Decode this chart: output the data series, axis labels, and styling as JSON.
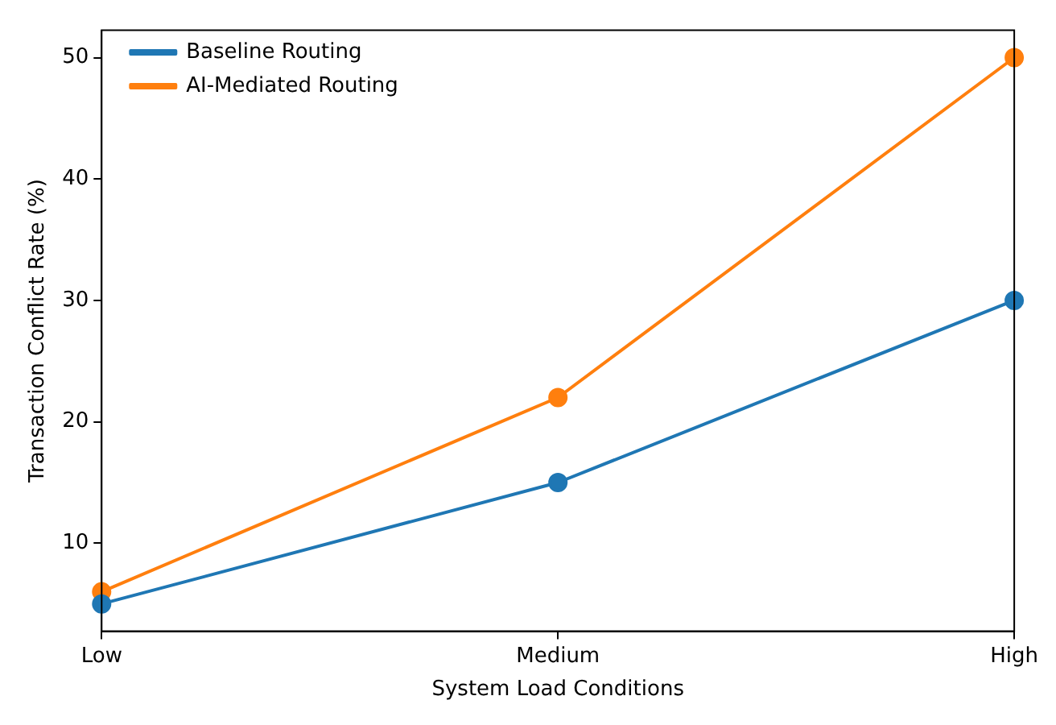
{
  "chart_data": {
    "type": "line",
    "xlabel": "System Load Conditions",
    "ylabel": "Transaction Conflict Rate (%)",
    "categories": [
      "Low",
      "Medium",
      "High"
    ],
    "series": [
      {
        "name": "Baseline Routing",
        "color": "#1f77b4",
        "values": [
          5,
          15,
          30
        ]
      },
      {
        "name": "AI-Mediated Routing",
        "color": "#ff7f0e",
        "values": [
          6,
          22,
          50
        ]
      }
    ],
    "ylim": [
      2.75,
      52.25
    ],
    "yticks": [
      10,
      20,
      30,
      40,
      50
    ],
    "grid": false,
    "legend": "top left",
    "marker": "circle",
    "line_style": "solid"
  }
}
